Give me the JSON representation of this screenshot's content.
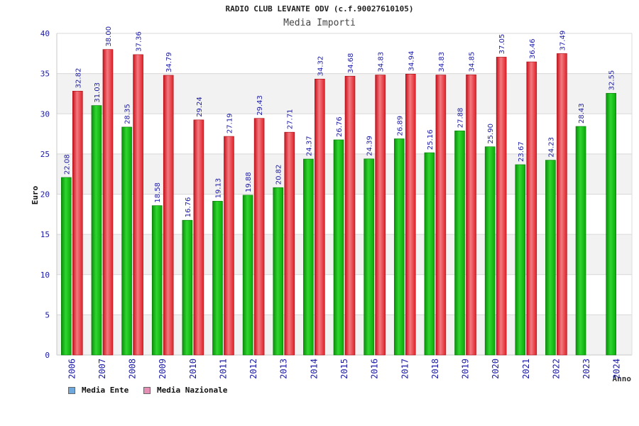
{
  "header": {
    "title": "RADIO CLUB LEVANTE ODV (c.f.90027610105)",
    "subtitle": "Media Importi"
  },
  "legend": {
    "ente_label": "Media Ente",
    "nazionale_label": "Media Nazionale",
    "ente_swatch_color": "#6fa8dc",
    "nazionale_swatch_color": "#e58fb6"
  },
  "chart_data": {
    "type": "bar",
    "title": "RADIO CLUB LEVANTE ODV (c.f.90027610105)",
    "subtitle": "Media Importi",
    "xlabel": "Anno",
    "ylabel": "Euro",
    "ylim": [
      0,
      40
    ],
    "yticks": [
      0,
      5,
      10,
      15,
      20,
      25,
      30,
      35,
      40
    ],
    "grid": "horizontal bands",
    "legend_position": "bottom-left",
    "categories": [
      "2006",
      "2007",
      "2008",
      "2009",
      "2010",
      "2011",
      "2012",
      "2013",
      "2014",
      "2015",
      "2016",
      "2017",
      "2018",
      "2019",
      "2020",
      "2021",
      "2022",
      "2023",
      "2024"
    ],
    "series": [
      {
        "name": "Media Ente",
        "color": "#0db30d",
        "values": [
          22.08,
          31.03,
          28.35,
          18.58,
          16.76,
          19.13,
          19.88,
          20.82,
          24.37,
          26.76,
          24.39,
          26.89,
          25.16,
          27.88,
          25.9,
          23.67,
          24.23,
          28.43,
          32.55
        ],
        "labels": [
          "22.08",
          "31.03",
          "28.35",
          "18.58",
          "16.76",
          "19.13",
          "19.88",
          "20.82",
          "24.37",
          "26.76",
          "24.39",
          "26.89",
          "25.16",
          "27.88",
          "25.90",
          "23.67",
          "24.23",
          "28.43",
          "32.55"
        ]
      },
      {
        "name": "Media Nazionale",
        "color": "#e8202a",
        "values": [
          32.82,
          38.0,
          37.36,
          34.79,
          29.24,
          27.19,
          29.43,
          27.71,
          34.32,
          34.68,
          34.83,
          34.94,
          34.83,
          34.85,
          37.05,
          36.46,
          37.49,
          null,
          null
        ],
        "labels": [
          "32.82",
          "38.00",
          "37.36",
          "34.79",
          "29.24",
          "27.19",
          "29.43",
          "27.71",
          "34.32",
          "34.68",
          "34.83",
          "34.94",
          "34.83",
          "34.85",
          "37.05",
          "36.46",
          "37.49",
          "",
          ""
        ]
      }
    ]
  }
}
